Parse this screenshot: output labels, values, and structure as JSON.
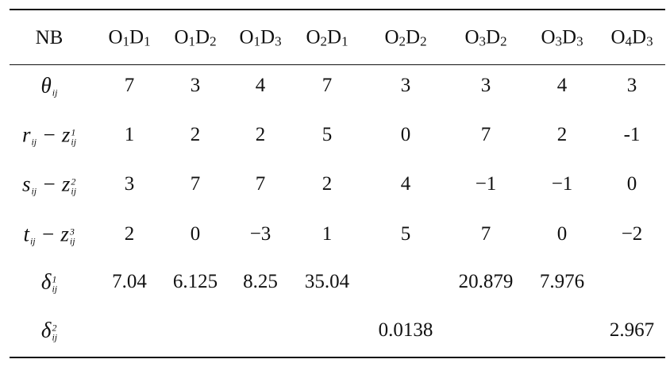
{
  "table": {
    "header": [
      [
        {
          "t": "NB"
        }
      ],
      [
        {
          "t": "O",
          "sub": "1"
        },
        {
          "t": "D",
          "sub": "1"
        }
      ],
      [
        {
          "t": "O",
          "sub": "1"
        },
        {
          "t": "D",
          "sub": "2"
        }
      ],
      [
        {
          "t": "O",
          "sub": "1"
        },
        {
          "t": "D",
          "sub": "3"
        }
      ],
      [
        {
          "t": "O",
          "sub": "2"
        },
        {
          "t": "D",
          "sub": "1"
        }
      ],
      [
        {
          "t": "O",
          "sub": "2"
        },
        {
          "t": "D",
          "sub": "2"
        }
      ],
      [
        {
          "t": "O",
          "sub": "3"
        },
        {
          "t": "D",
          "sub": "2"
        }
      ],
      [
        {
          "t": "O",
          "sub": "3"
        },
        {
          "t": "D",
          "sub": "3"
        }
      ],
      [
        {
          "t": "O",
          "sub": "4"
        },
        {
          "t": "D",
          "sub": "3"
        }
      ]
    ],
    "rows": [
      {
        "label": [
          {
            "t": "θ",
            "sub": "ij"
          }
        ],
        "cells": [
          "7",
          "3",
          "4",
          "7",
          "3",
          "3",
          "4",
          "3"
        ]
      },
      {
        "label": [
          {
            "t": "r",
            "sub": "ij"
          },
          {
            "t": " − "
          },
          {
            "t": "z",
            "sup": "1",
            "sub": "ij"
          }
        ],
        "cells": [
          "1",
          "2",
          "2",
          "5",
          "0",
          "7",
          "2",
          "-1"
        ]
      },
      {
        "label": [
          {
            "t": "s",
            "sub": "ij"
          },
          {
            "t": " − "
          },
          {
            "t": "z",
            "sup": "2",
            "sub": "ij"
          }
        ],
        "cells": [
          "3",
          "7",
          "7",
          "2",
          "4",
          "−1",
          "−1",
          "0"
        ]
      },
      {
        "label": [
          {
            "t": "t",
            "sub": "ij"
          },
          {
            "t": " − "
          },
          {
            "t": "z",
            "sup": "3",
            "sub": "ij"
          }
        ],
        "cells": [
          "2",
          "0",
          "−3",
          "1",
          "5",
          "7",
          "0",
          "−2"
        ]
      },
      {
        "label": [
          {
            "t": "δ",
            "sup": "1",
            "sub": "ij"
          }
        ],
        "cells": [
          "7.04",
          "6.125",
          "8.25",
          "35.04",
          null,
          "20.879",
          "7.976",
          null
        ]
      },
      {
        "label": [
          {
            "t": "δ",
            "sup": "2",
            "sub": "ij"
          }
        ],
        "cells": [
          null,
          null,
          null,
          null,
          "0.0138",
          null,
          null,
          "2.967"
        ]
      }
    ]
  }
}
